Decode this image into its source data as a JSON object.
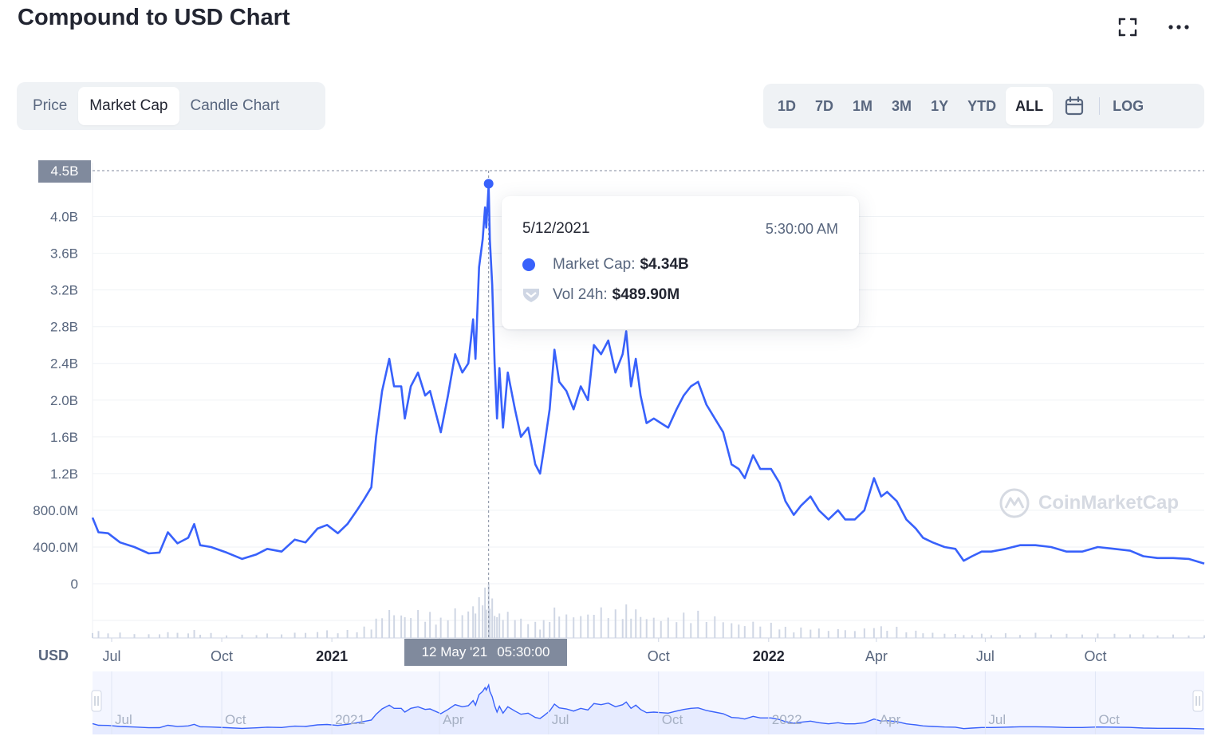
{
  "title": "Compound to USD Chart",
  "toolbar": {
    "fullscreen_icon": "fullscreen-icon",
    "more_icon": "more-icon"
  },
  "view_tabs": [
    {
      "label": "Price",
      "active": false
    },
    {
      "label": "Market Cap",
      "active": true
    },
    {
      "label": "Candle Chart",
      "active": false
    }
  ],
  "range_tabs": [
    {
      "label": "1D",
      "active": false
    },
    {
      "label": "7D",
      "active": false
    },
    {
      "label": "1M",
      "active": false
    },
    {
      "label": "3M",
      "active": false
    },
    {
      "label": "1Y",
      "active": false
    },
    {
      "label": "YTD",
      "active": false
    },
    {
      "label": "ALL",
      "active": true
    }
  ],
  "calendar_icon": "calendar-icon",
  "log_label": "LOG",
  "tooltip": {
    "date": "5/12/2021",
    "time": "5:30:00 AM",
    "market_cap_label": "Market Cap:",
    "market_cap_value": "$4.34B",
    "vol_label": "Vol 24h:",
    "vol_value": "$489.90M"
  },
  "crosshair": {
    "y_label": "4.5B",
    "x_date": "12 May '21",
    "x_time": "05:30:00"
  },
  "watermark": "CoinMarketCap",
  "colors": {
    "line": "#3861fb",
    "fill": "#e6ebff",
    "grid": "#eff2f5",
    "volume": "#cfd6e4"
  },
  "chart_data": {
    "type": "line",
    "currency_label": "USD",
    "ylim": [
      0,
      4500000000
    ],
    "y_ticks": [
      {
        "value": 0,
        "label": "0"
      },
      {
        "value": 400000000,
        "label": "400.0M"
      },
      {
        "value": 800000000,
        "label": "800.0M"
      },
      {
        "value": 1200000000,
        "label": "1.2B"
      },
      {
        "value": 1600000000,
        "label": "1.6B"
      },
      {
        "value": 2000000000,
        "label": "2.0B"
      },
      {
        "value": 2400000000,
        "label": "2.4B"
      },
      {
        "value": 2800000000,
        "label": "2.8B"
      },
      {
        "value": 3200000000,
        "label": "3.2B"
      },
      {
        "value": 3600000000,
        "label": "3.6B"
      },
      {
        "value": 4000000000,
        "label": "4.0B"
      }
    ],
    "xlim": [
      "2020-06-15",
      "2022-12-31"
    ],
    "x_ticks": [
      {
        "date": "2020-07-01",
        "label": "Jul",
        "bold": false
      },
      {
        "date": "2020-10-01",
        "label": "Oct",
        "bold": false
      },
      {
        "date": "2021-01-01",
        "label": "2021",
        "bold": true
      },
      {
        "date": "2021-04-01",
        "label": "Apr",
        "bold": false
      },
      {
        "date": "2021-07-01",
        "label": "Jul",
        "bold": false
      },
      {
        "date": "2021-10-01",
        "label": "Oct",
        "bold": false
      },
      {
        "date": "2022-01-01",
        "label": "2022",
        "bold": true
      },
      {
        "date": "2022-04-01",
        "label": "Apr",
        "bold": false
      },
      {
        "date": "2022-07-01",
        "label": "Jul",
        "bold": false
      },
      {
        "date": "2022-10-01",
        "label": "Oct",
        "bold": false
      }
    ],
    "series": [
      {
        "values": [
          [
            "2020-06-15",
            720000000
          ],
          [
            "2020-06-20",
            560000000
          ],
          [
            "2020-06-28",
            550000000
          ],
          [
            "2020-07-08",
            450000000
          ],
          [
            "2020-07-20",
            400000000
          ],
          [
            "2020-08-01",
            330000000
          ],
          [
            "2020-08-10",
            340000000
          ],
          [
            "2020-08-17",
            560000000
          ],
          [
            "2020-08-25",
            440000000
          ],
          [
            "2020-09-03",
            500000000
          ],
          [
            "2020-09-08",
            650000000
          ],
          [
            "2020-09-13",
            420000000
          ],
          [
            "2020-09-22",
            400000000
          ],
          [
            "2020-10-05",
            340000000
          ],
          [
            "2020-10-18",
            270000000
          ],
          [
            "2020-10-30",
            320000000
          ],
          [
            "2020-11-08",
            380000000
          ],
          [
            "2020-11-20",
            350000000
          ],
          [
            "2020-12-01",
            480000000
          ],
          [
            "2020-12-10",
            450000000
          ],
          [
            "2020-12-20",
            600000000
          ],
          [
            "2020-12-28",
            640000000
          ],
          [
            "2021-01-06",
            550000000
          ],
          [
            "2021-01-14",
            650000000
          ],
          [
            "2021-01-22",
            800000000
          ],
          [
            "2021-01-28",
            920000000
          ],
          [
            "2021-02-03",
            1050000000
          ],
          [
            "2021-02-07",
            1600000000
          ],
          [
            "2021-02-12",
            2100000000
          ],
          [
            "2021-02-18",
            2450000000
          ],
          [
            "2021-02-22",
            2150000000
          ],
          [
            "2021-02-28",
            2150000000
          ],
          [
            "2021-03-03",
            1800000000
          ],
          [
            "2021-03-08",
            2150000000
          ],
          [
            "2021-03-14",
            2300000000
          ],
          [
            "2021-03-20",
            2050000000
          ],
          [
            "2021-03-24",
            2100000000
          ],
          [
            "2021-03-29",
            1850000000
          ],
          [
            "2021-04-02",
            1650000000
          ],
          [
            "2021-04-08",
            2050000000
          ],
          [
            "2021-04-14",
            2500000000
          ],
          [
            "2021-04-20",
            2300000000
          ],
          [
            "2021-04-25",
            2400000000
          ],
          [
            "2021-04-29",
            2880000000
          ],
          [
            "2021-05-01",
            2450000000
          ],
          [
            "2021-05-04",
            3450000000
          ],
          [
            "2021-05-07",
            3750000000
          ],
          [
            "2021-05-09",
            4100000000
          ],
          [
            "2021-05-10",
            3880000000
          ],
          [
            "2021-05-12",
            4340000000
          ],
          [
            "2021-05-13",
            3750000000
          ],
          [
            "2021-05-15",
            3250000000
          ],
          [
            "2021-05-17",
            2400000000
          ],
          [
            "2021-05-19",
            1800000000
          ],
          [
            "2021-05-21",
            2350000000
          ],
          [
            "2021-05-24",
            1700000000
          ],
          [
            "2021-05-28",
            2300000000
          ],
          [
            "2021-06-03",
            1900000000
          ],
          [
            "2021-06-08",
            1600000000
          ],
          [
            "2021-06-14",
            1700000000
          ],
          [
            "2021-06-20",
            1300000000
          ],
          [
            "2021-06-24",
            1200000000
          ],
          [
            "2021-06-27",
            1450000000
          ],
          [
            "2021-07-02",
            1900000000
          ],
          [
            "2021-07-06",
            2550000000
          ],
          [
            "2021-07-10",
            2200000000
          ],
          [
            "2021-07-16",
            2100000000
          ],
          [
            "2021-07-22",
            1900000000
          ],
          [
            "2021-07-28",
            2150000000
          ],
          [
            "2021-08-03",
            2000000000
          ],
          [
            "2021-08-08",
            2600000000
          ],
          [
            "2021-08-14",
            2500000000
          ],
          [
            "2021-08-20",
            2650000000
          ],
          [
            "2021-08-26",
            2300000000
          ],
          [
            "2021-09-01",
            2500000000
          ],
          [
            "2021-09-04",
            2750000000
          ],
          [
            "2021-09-08",
            2150000000
          ],
          [
            "2021-09-12",
            2450000000
          ],
          [
            "2021-09-16",
            2050000000
          ],
          [
            "2021-09-21",
            1750000000
          ],
          [
            "2021-09-27",
            1800000000
          ],
          [
            "2021-10-03",
            1750000000
          ],
          [
            "2021-10-09",
            1700000000
          ],
          [
            "2021-10-16",
            1900000000
          ],
          [
            "2021-10-22",
            2050000000
          ],
          [
            "2021-10-28",
            2150000000
          ],
          [
            "2021-11-03",
            2200000000
          ],
          [
            "2021-11-10",
            1950000000
          ],
          [
            "2021-11-17",
            1800000000
          ],
          [
            "2021-11-24",
            1650000000
          ],
          [
            "2021-12-01",
            1300000000
          ],
          [
            "2021-12-07",
            1250000000
          ],
          [
            "2021-12-12",
            1150000000
          ],
          [
            "2021-12-19",
            1400000000
          ],
          [
            "2021-12-25",
            1250000000
          ],
          [
            "2022-01-03",
            1250000000
          ],
          [
            "2022-01-10",
            1100000000
          ],
          [
            "2022-01-15",
            900000000
          ],
          [
            "2022-01-22",
            750000000
          ],
          [
            "2022-01-28",
            850000000
          ],
          [
            "2022-02-05",
            950000000
          ],
          [
            "2022-02-12",
            800000000
          ],
          [
            "2022-02-20",
            700000000
          ],
          [
            "2022-02-28",
            800000000
          ],
          [
            "2022-03-06",
            700000000
          ],
          [
            "2022-03-14",
            700000000
          ],
          [
            "2022-03-22",
            800000000
          ],
          [
            "2022-03-30",
            1150000000
          ],
          [
            "2022-04-05",
            950000000
          ],
          [
            "2022-04-10",
            1000000000
          ],
          [
            "2022-04-18",
            900000000
          ],
          [
            "2022-04-26",
            700000000
          ],
          [
            "2022-05-04",
            600000000
          ],
          [
            "2022-05-10",
            500000000
          ],
          [
            "2022-05-18",
            450000000
          ],
          [
            "2022-05-28",
            400000000
          ],
          [
            "2022-06-06",
            380000000
          ],
          [
            "2022-06-13",
            250000000
          ],
          [
            "2022-06-20",
            300000000
          ],
          [
            "2022-06-28",
            350000000
          ],
          [
            "2022-07-06",
            350000000
          ],
          [
            "2022-07-18",
            380000000
          ],
          [
            "2022-07-30",
            420000000
          ],
          [
            "2022-08-12",
            420000000
          ],
          [
            "2022-08-25",
            400000000
          ],
          [
            "2022-09-07",
            350000000
          ],
          [
            "2022-09-20",
            350000000
          ],
          [
            "2022-10-03",
            400000000
          ],
          [
            "2022-10-17",
            380000000
          ],
          [
            "2022-10-30",
            360000000
          ],
          [
            "2022-11-10",
            300000000
          ],
          [
            "2022-11-22",
            280000000
          ],
          [
            "2022-12-05",
            280000000
          ],
          [
            "2022-12-18",
            270000000
          ],
          [
            "2022-12-31",
            220000000
          ]
        ]
      }
    ],
    "highlight": {
      "date": "2021-05-12",
      "value": 4340000000
    },
    "crosshair_value": 4500000000,
    "grid": true,
    "navigator_ticks": [
      {
        "date": "2020-07-01",
        "label": "Jul"
      },
      {
        "date": "2020-10-01",
        "label": "Oct"
      },
      {
        "date": "2021-01-01",
        "label": "2021"
      },
      {
        "date": "2021-04-01",
        "label": "Apr"
      },
      {
        "date": "2021-07-01",
        "label": "Jul"
      },
      {
        "date": "2021-10-01",
        "label": "Oct"
      },
      {
        "date": "2022-01-01",
        "label": "2022"
      },
      {
        "date": "2022-04-01",
        "label": "Apr"
      },
      {
        "date": "2022-07-01",
        "label": "Jul"
      },
      {
        "date": "2022-10-01",
        "label": "Oct"
      }
    ]
  }
}
